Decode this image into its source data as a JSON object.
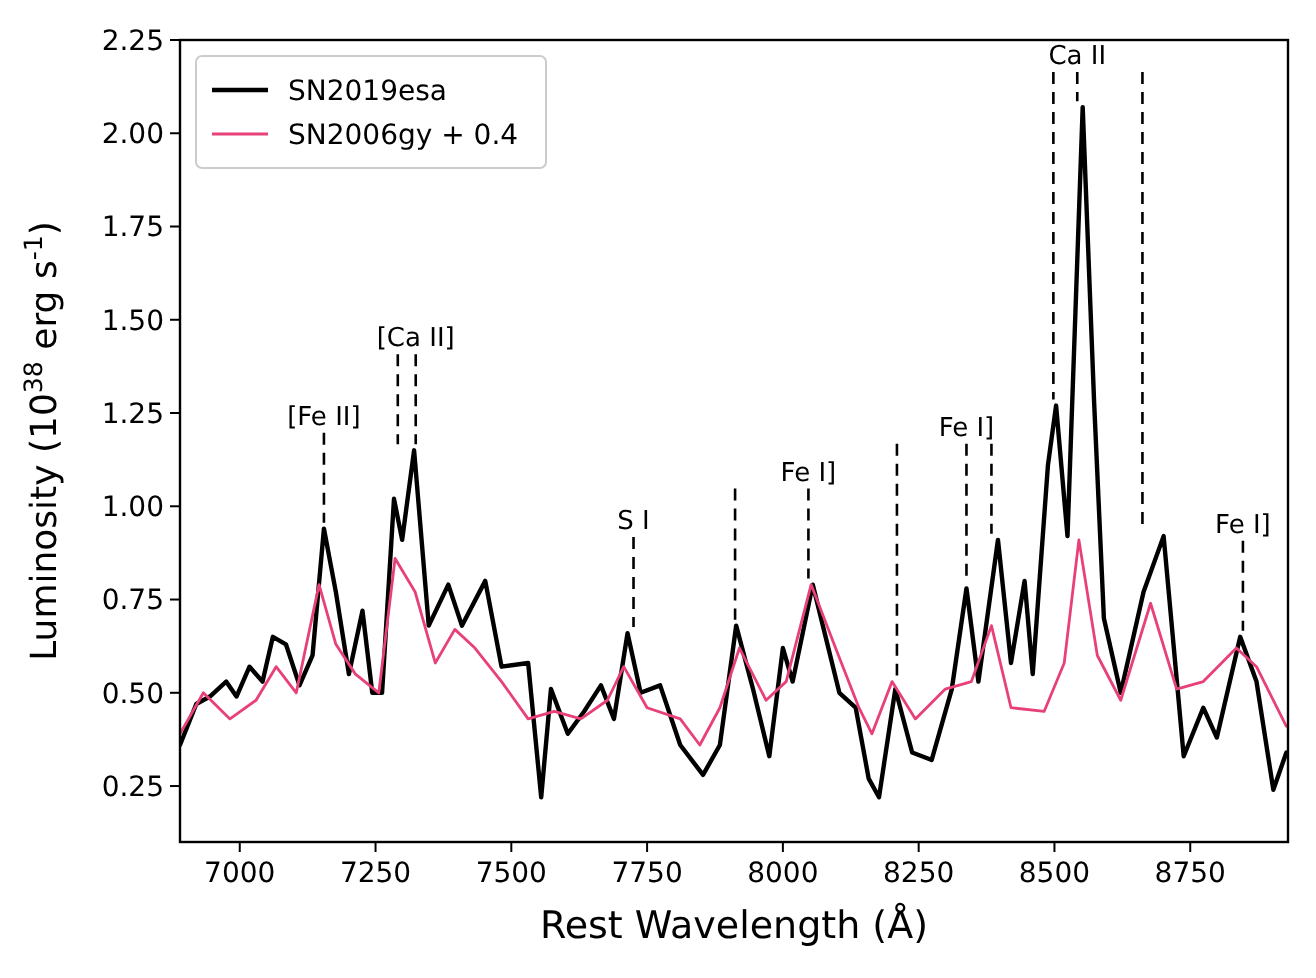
{
  "chart_data": {
    "type": "line",
    "xlabel": "Rest Wavelength (Å)",
    "ylabel": "Luminosity (10$^{38}$ erg s$^{-1}$)",
    "xlim": [
      6890,
      8930
    ],
    "xticks": [
      7000,
      7250,
      7500,
      7750,
      8000,
      8250,
      8500,
      8750
    ],
    "ylim": [
      0.1,
      2.25
    ],
    "yticks": [
      0.25,
      {
        "value": 0.5,
        "label": "0.50"
      },
      0.75,
      {
        "value": 1,
        "label": "1.00"
      },
      1.25,
      {
        "value": 1.5,
        "label": "1.50"
      },
      1.75,
      {
        "value": 2,
        "label": "2.00"
      },
      2.25
    ],
    "legend": "top left",
    "grid": false,
    "marker": "none",
    "line_style": "solid",
    "series": [
      {
        "name": "SN2019esa",
        "color": "#000000",
        "x": [
          6890,
          6920,
          6945,
          6975,
          6994,
          7018,
          7042,
          7061,
          7085,
          7110,
          7134,
          7155,
          7177,
          7201,
          7226,
          7244,
          7262,
          7284,
          7299,
          7321,
          7348,
          7384,
          7409,
          7452,
          7482,
          7531,
          7555,
          7573,
          7604,
          7634,
          7665,
          7689,
          7714,
          7738,
          7774,
          7811,
          7853,
          7884,
          7914,
          7945,
          7975,
          8000,
          8018,
          8055,
          8104,
          8134,
          8158,
          8177,
          8207,
          8238,
          8274,
          8311,
          8338,
          8360,
          8396,
          8420,
          8445,
          8460,
          8488,
          8503,
          8524,
          8552,
          8573,
          8591,
          8622,
          8664,
          8701,
          8738,
          8774,
          8799,
          8842,
          8872,
          8903,
          8927
        ],
        "values": [
          0.36,
          0.47,
          0.49,
          0.53,
          0.49,
          0.57,
          0.53,
          0.65,
          0.63,
          0.52,
          0.6,
          0.94,
          0.77,
          0.55,
          0.72,
          0.5,
          0.5,
          1.02,
          0.91,
          1.15,
          0.68,
          0.79,
          0.68,
          0.8,
          0.57,
          0.58,
          0.22,
          0.51,
          0.39,
          0.45,
          0.52,
          0.43,
          0.66,
          0.5,
          0.52,
          0.36,
          0.28,
          0.36,
          0.68,
          0.51,
          0.33,
          0.62,
          0.53,
          0.79,
          0.5,
          0.46,
          0.27,
          0.22,
          0.51,
          0.34,
          0.32,
          0.51,
          0.78,
          0.53,
          0.91,
          0.58,
          0.8,
          0.55,
          1.11,
          1.27,
          0.92,
          2.07,
          1.28,
          0.7,
          0.5,
          0.77,
          0.92,
          0.33,
          0.46,
          0.38,
          0.65,
          0.53,
          0.24,
          0.34
        ]
      },
      {
        "name": "SN2006gy + 0.4",
        "color": "#e8407a",
        "x": [
          6890,
          6933,
          6982,
          7030,
          7067,
          7104,
          7146,
          7177,
          7213,
          7256,
          7286,
          7323,
          7360,
          7396,
          7433,
          7482,
          7531,
          7579,
          7628,
          7677,
          7707,
          7750,
          7811,
          7847,
          7884,
          7920,
          7969,
          8006,
          8052,
          8097,
          8140,
          8164,
          8201,
          8244,
          8299,
          8347,
          8384,
          8420,
          8481,
          8518,
          8545,
          8579,
          8622,
          8677,
          8725,
          8774,
          8835,
          8872,
          8927
        ],
        "values": [
          0.39,
          0.5,
          0.43,
          0.48,
          0.57,
          0.5,
          0.79,
          0.63,
          0.55,
          0.5,
          0.86,
          0.77,
          0.58,
          0.67,
          0.62,
          0.53,
          0.43,
          0.45,
          0.43,
          0.48,
          0.57,
          0.46,
          0.43,
          0.36,
          0.46,
          0.62,
          0.48,
          0.53,
          0.79,
          0.62,
          0.46,
          0.39,
          0.53,
          0.43,
          0.51,
          0.53,
          0.68,
          0.46,
          0.45,
          0.58,
          0.91,
          0.6,
          0.48,
          0.74,
          0.51,
          0.53,
          0.62,
          0.57,
          0.41
        ]
      }
    ],
    "ref_lines": [
      {
        "axis": "x",
        "value": 7155,
        "label": "[Fe II]",
        "line_style": "dashed"
      },
      {
        "axis": "x",
        "value": 7291,
        "line_style": "dashed"
      },
      {
        "axis": "x",
        "value": 7324,
        "label": "[Ca II]",
        "line_style": "dashed"
      },
      {
        "axis": "x",
        "value": 7725,
        "label": "S I",
        "line_style": "dashed"
      },
      {
        "axis": "x",
        "value": 7912,
        "line_style": "dashed"
      },
      {
        "axis": "x",
        "value": 8047,
        "label": "Fe I]",
        "line_style": "dashed"
      },
      {
        "axis": "x",
        "value": 8210,
        "line_style": "dashed"
      },
      {
        "axis": "x",
        "value": 8338,
        "label": "Fe I]",
        "line_style": "dashed"
      },
      {
        "axis": "x",
        "value": 8384,
        "line_style": "dashed"
      },
      {
        "axis": "x",
        "value": 8498,
        "line_style": "dashed"
      },
      {
        "axis": "x",
        "value": 8542,
        "label": "Ca II",
        "line_style": "dashed"
      },
      {
        "axis": "x",
        "value": 8662,
        "line_style": "dashed"
      },
      {
        "axis": "x",
        "value": 8847,
        "label": "Fe I]",
        "line_style": "dashed"
      }
    ]
  }
}
